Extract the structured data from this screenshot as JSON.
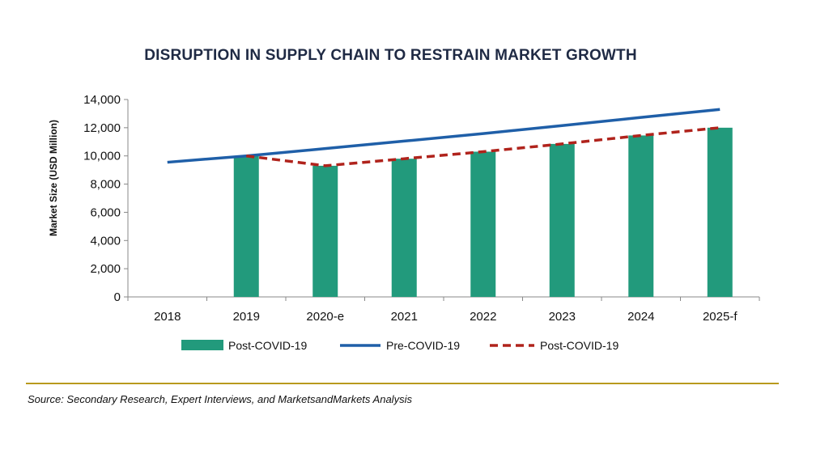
{
  "title": "DISRUPTION IN SUPPLY CHAIN TO RESTRAIN MARKET GROWTH",
  "source": "Source: Secondary Research, Expert Interviews, and MarketsandMarkets Analysis",
  "colors": {
    "bar": "#229a7c",
    "pre_line": "#1f5fa8",
    "post_line": "#b0231c",
    "divider": "#b89a1e"
  },
  "chart_data": {
    "type": "bar",
    "title": "DISRUPTION IN SUPPLY CHAIN TO RESTRAIN MARKET GROWTH",
    "xlabel": "",
    "ylabel": "Market Size (USD Million)",
    "ylim": [
      0,
      14000
    ],
    "yticks": [
      0,
      2000,
      4000,
      6000,
      8000,
      10000,
      12000,
      14000
    ],
    "ytick_labels": [
      "0",
      "2,000",
      "4,000",
      "6,000",
      "8,000",
      "10,000",
      "12,000",
      "14,000"
    ],
    "categories": [
      "2018",
      "2019",
      "2020-e",
      "2021",
      "2022",
      "2023",
      "2024",
      "2025-f"
    ],
    "grid": false,
    "legend_position": "bottom",
    "series": [
      {
        "name": "Post-COVID-19",
        "kind": "bar",
        "values": [
          null,
          10000,
          9300,
          9800,
          10300,
          10850,
          11450,
          12000
        ]
      },
      {
        "name": "Pre-COVID-19",
        "kind": "line",
        "style": "solid",
        "values": [
          9550,
          10000,
          10520,
          11050,
          11580,
          12150,
          12730,
          13300
        ]
      },
      {
        "name": "Post-COVID-19",
        "kind": "line",
        "style": "dashed",
        "values": [
          null,
          10000,
          9300,
          9800,
          10300,
          10850,
          11450,
          12000
        ]
      }
    ]
  }
}
